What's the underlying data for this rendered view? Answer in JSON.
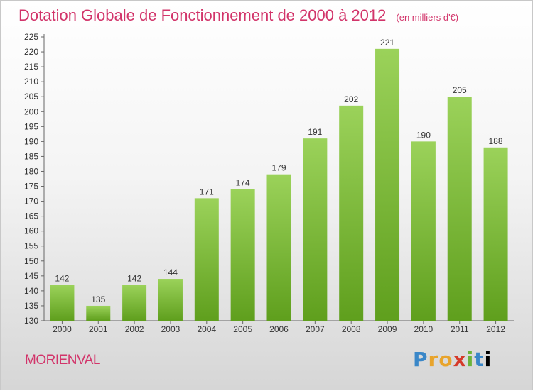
{
  "title": "Dotation Globale de Fonctionnement de 2000 à 2012",
  "subtitle": "(en milliers d'€)",
  "commune": "MORIENVAL",
  "brand": [
    "P",
    "r",
    "o",
    "x",
    "i",
    "t",
    "i"
  ],
  "colors": {
    "title": "#d2346a",
    "bar_top": "#9bd25a",
    "bar_bottom": "#5f9f1d"
  },
  "chart_data": {
    "type": "bar",
    "title": "Dotation Globale de Fonctionnement de 2000 à 2012",
    "subtitle": "(en milliers d'€)",
    "categories": [
      "2000",
      "2001",
      "2002",
      "2003",
      "2004",
      "2005",
      "2006",
      "2007",
      "2008",
      "2009",
      "2010",
      "2011",
      "2012"
    ],
    "values": [
      142,
      135,
      142,
      144,
      171,
      174,
      179,
      191,
      202,
      221,
      190,
      205,
      188
    ],
    "ylim": [
      130,
      225
    ],
    "yticks": [
      130,
      135,
      140,
      145,
      150,
      155,
      160,
      165,
      170,
      175,
      180,
      185,
      190,
      195,
      200,
      205,
      210,
      215,
      220,
      225
    ],
    "grid": false,
    "legend": "none"
  }
}
